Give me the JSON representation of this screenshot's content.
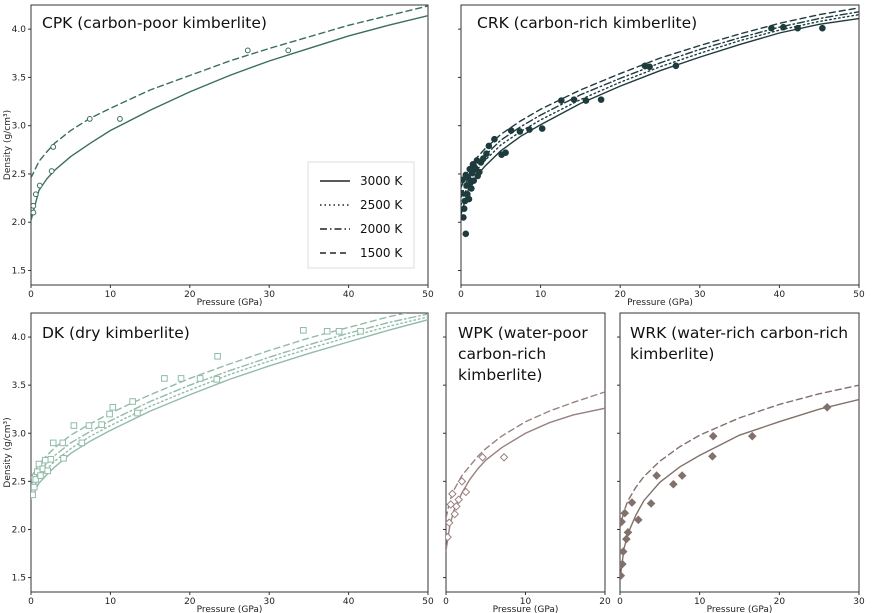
{
  "figure": {
    "y_axis_label": "Density (g/cm³)",
    "x_axis_label": "Pressure (GPa)"
  },
  "legend": {
    "items": [
      {
        "label": "3000 K",
        "dash": "solid"
      },
      {
        "label": "2500 K",
        "dash": "dotted"
      },
      {
        "label": "2000 K",
        "dash": "dashdot"
      },
      {
        "label": "1500 K",
        "dash": "dashed"
      }
    ]
  },
  "chart_data": [
    {
      "id": "cpk",
      "type": "line",
      "title": "CPK (carbon-poor kimberlite)",
      "color": "#3b6e5e",
      "marker": "circle",
      "marker_fill": "open",
      "xlabel": "Pressure (GPa)",
      "ylabel": "Density (g/cm³)",
      "xlim": [
        0,
        50
      ],
      "ylim": [
        1.35,
        4.25
      ],
      "xticks": [
        0,
        10,
        20,
        30,
        40,
        50
      ],
      "yticks": [
        1.5,
        2.0,
        2.5,
        3.0,
        3.5,
        4.0
      ],
      "show_y_tick_labels": true,
      "series": [
        {
          "temperature": "3000 K",
          "dash": "solid",
          "x": [
            0,
            1,
            2,
            3,
            5,
            7.5,
            10,
            15,
            20,
            25,
            30,
            35,
            40,
            45,
            50
          ],
          "y": [
            2.02,
            2.33,
            2.45,
            2.54,
            2.68,
            2.82,
            2.95,
            3.16,
            3.35,
            3.52,
            3.67,
            3.8,
            3.93,
            4.04,
            4.14
          ]
        },
        {
          "temperature": "1500 K",
          "dash": "dashed",
          "x": [
            0,
            1,
            2,
            3,
            5,
            7.5,
            10,
            15,
            20,
            25,
            30,
            35,
            40,
            45,
            50
          ],
          "y": [
            2.46,
            2.63,
            2.73,
            2.82,
            2.95,
            3.08,
            3.18,
            3.37,
            3.52,
            3.67,
            3.8,
            3.92,
            4.04,
            4.14,
            4.24
          ]
        }
      ],
      "points": [
        {
          "x": 0.3,
          "y": 2.1
        },
        {
          "x": 0.3,
          "y": 2.17
        },
        {
          "x": 0.6,
          "y": 2.29
        },
        {
          "x": 1.1,
          "y": 2.38
        },
        {
          "x": 2.6,
          "y": 2.53
        },
        {
          "x": 2.8,
          "y": 2.78
        },
        {
          "x": 7.4,
          "y": 3.07
        },
        {
          "x": 11.2,
          "y": 3.07
        },
        {
          "x": 27.3,
          "y": 3.78
        },
        {
          "x": 32.4,
          "y": 3.78
        }
      ]
    },
    {
      "id": "crk",
      "type": "line",
      "title": "CRK (carbon-rich kimberlite)",
      "color": "#1e3b3d",
      "marker": "circle",
      "marker_fill": "filled",
      "xlabel": "Pressure (GPa)",
      "ylabel": "",
      "xlim": [
        0,
        50
      ],
      "ylim": [
        1.35,
        4.25
      ],
      "xticks": [
        0,
        10,
        20,
        30,
        40,
        50
      ],
      "yticks": [
        1.5,
        2.0,
        2.5,
        3.0,
        3.5,
        4.0
      ],
      "show_y_tick_labels": false,
      "series": [
        {
          "temperature": "3000 K",
          "dash": "solid",
          "x": [
            0,
            1,
            2,
            3,
            5,
            7.5,
            10,
            15,
            20,
            25,
            30,
            35,
            40,
            45,
            50
          ],
          "y": [
            2.08,
            2.36,
            2.48,
            2.58,
            2.74,
            2.89,
            3.01,
            3.23,
            3.41,
            3.57,
            3.71,
            3.84,
            3.96,
            4.05,
            4.11
          ]
        },
        {
          "temperature": "2500 K",
          "dash": "dotted",
          "x": [
            0,
            1,
            2,
            3,
            5,
            7.5,
            10,
            15,
            20,
            25,
            30,
            35,
            40,
            45,
            50
          ],
          "y": [
            2.18,
            2.42,
            2.54,
            2.64,
            2.8,
            2.94,
            3.06,
            3.27,
            3.45,
            3.61,
            3.75,
            3.88,
            3.99,
            4.08,
            4.15
          ]
        },
        {
          "temperature": "2000 K",
          "dash": "dashdot",
          "x": [
            0,
            1,
            2,
            3,
            5,
            7.5,
            10,
            15,
            20,
            25,
            30,
            35,
            40,
            45,
            50
          ],
          "y": [
            2.26,
            2.49,
            2.6,
            2.69,
            2.85,
            2.99,
            3.11,
            3.32,
            3.49,
            3.65,
            3.79,
            3.91,
            4.02,
            4.11,
            4.18
          ]
        },
        {
          "temperature": "1500 K",
          "dash": "dashed",
          "x": [
            0,
            1,
            2,
            3,
            5,
            7.5,
            10,
            15,
            20,
            25,
            30,
            35,
            40,
            45,
            50
          ],
          "y": [
            2.36,
            2.56,
            2.67,
            2.76,
            2.91,
            3.05,
            3.17,
            3.37,
            3.54,
            3.7,
            3.83,
            3.95,
            4.06,
            4.15,
            4.22
          ]
        }
      ],
      "points": [
        {
          "x": 0.1,
          "y": 2.3
        },
        {
          "x": 0.2,
          "y": 2.44
        },
        {
          "x": 0.3,
          "y": 2.05
        },
        {
          "x": 0.4,
          "y": 2.14
        },
        {
          "x": 0.5,
          "y": 2.22
        },
        {
          "x": 0.6,
          "y": 1.88
        },
        {
          "x": 0.6,
          "y": 2.49
        },
        {
          "x": 0.7,
          "y": 2.38
        },
        {
          "x": 0.8,
          "y": 2.29
        },
        {
          "x": 0.9,
          "y": 2.46
        },
        {
          "x": 1.0,
          "y": 2.24
        },
        {
          "x": 1.1,
          "y": 2.55
        },
        {
          "x": 1.2,
          "y": 2.41
        },
        {
          "x": 1.3,
          "y": 2.35
        },
        {
          "x": 1.4,
          "y": 2.51
        },
        {
          "x": 1.5,
          "y": 2.6
        },
        {
          "x": 1.6,
          "y": 2.43
        },
        {
          "x": 1.8,
          "y": 2.56
        },
        {
          "x": 2.0,
          "y": 2.64
        },
        {
          "x": 2.1,
          "y": 2.48
        },
        {
          "x": 2.3,
          "y": 2.52
        },
        {
          "x": 2.5,
          "y": 2.62
        },
        {
          "x": 2.8,
          "y": 2.66
        },
        {
          "x": 3.2,
          "y": 2.71
        },
        {
          "x": 3.5,
          "y": 2.79
        },
        {
          "x": 4.2,
          "y": 2.86
        },
        {
          "x": 5.1,
          "y": 2.7
        },
        {
          "x": 5.6,
          "y": 2.72
        },
        {
          "x": 6.3,
          "y": 2.95
        },
        {
          "x": 7.4,
          "y": 2.94
        },
        {
          "x": 8.6,
          "y": 2.96
        },
        {
          "x": 10.2,
          "y": 2.97
        },
        {
          "x": 12.6,
          "y": 3.26
        },
        {
          "x": 14.2,
          "y": 3.27
        },
        {
          "x": 15.7,
          "y": 3.26
        },
        {
          "x": 17.6,
          "y": 3.27
        },
        {
          "x": 23.1,
          "y": 3.62
        },
        {
          "x": 23.7,
          "y": 3.61
        },
        {
          "x": 27.0,
          "y": 3.62
        },
        {
          "x": 39.0,
          "y": 4.01
        },
        {
          "x": 40.5,
          "y": 4.02
        },
        {
          "x": 42.3,
          "y": 4.01
        },
        {
          "x": 45.4,
          "y": 4.01
        }
      ]
    },
    {
      "id": "dk",
      "type": "line",
      "title": "DK (dry kimberlite)",
      "color": "#92bba9",
      "marker": "square",
      "marker_fill": "open",
      "xlabel": "Pressure (GPa)",
      "ylabel": "Density (g/cm³)",
      "xlim": [
        0,
        50
      ],
      "ylim": [
        1.35,
        4.25
      ],
      "xticks": [
        0,
        10,
        20,
        30,
        40,
        50
      ],
      "yticks": [
        1.5,
        2.0,
        2.5,
        3.0,
        3.5,
        4.0
      ],
      "show_y_tick_labels": true,
      "series": [
        {
          "temperature": "3000 K",
          "dash": "solid",
          "x": [
            0,
            1,
            2,
            3,
            5,
            7.5,
            10,
            15,
            20,
            25,
            30,
            35,
            40,
            45,
            50
          ],
          "y": [
            2.32,
            2.48,
            2.57,
            2.65,
            2.79,
            2.92,
            3.03,
            3.23,
            3.4,
            3.56,
            3.7,
            3.83,
            3.95,
            4.07,
            4.18
          ]
        },
        {
          "temperature": "2500 K",
          "dash": "dotted",
          "x": [
            0,
            1,
            2,
            3,
            5,
            7.5,
            10,
            15,
            20,
            25,
            30,
            35,
            40,
            45,
            50
          ],
          "y": [
            2.39,
            2.54,
            2.63,
            2.71,
            2.84,
            2.97,
            3.08,
            3.28,
            3.45,
            3.61,
            3.75,
            3.88,
            4.0,
            4.11,
            4.21
          ]
        },
        {
          "temperature": "2000 K",
          "dash": "dashdot",
          "x": [
            0,
            1,
            2,
            3,
            5,
            7.5,
            10,
            15,
            20,
            25,
            30,
            35,
            40,
            45,
            50
          ],
          "y": [
            2.46,
            2.6,
            2.69,
            2.77,
            2.9,
            3.02,
            3.13,
            3.33,
            3.5,
            3.65,
            3.79,
            3.92,
            4.04,
            4.15,
            4.24
          ]
        },
        {
          "temperature": "1500 K",
          "dash": "dashed",
          "x": [
            0,
            1,
            2,
            3,
            5,
            7.5,
            10,
            15,
            20,
            25,
            30,
            35,
            40,
            45,
            50
          ],
          "y": [
            2.54,
            2.68,
            2.77,
            2.85,
            2.98,
            3.1,
            3.21,
            3.4,
            3.57,
            3.72,
            3.86,
            3.99,
            4.1,
            4.21,
            4.3
          ]
        }
      ],
      "points": [
        {
          "x": 0.2,
          "y": 2.36
        },
        {
          "x": 0.4,
          "y": 2.44
        },
        {
          "x": 0.6,
          "y": 2.52
        },
        {
          "x": 0.8,
          "y": 2.6
        },
        {
          "x": 1.0,
          "y": 2.68
        },
        {
          "x": 1.2,
          "y": 2.56
        },
        {
          "x": 1.5,
          "y": 2.63
        },
        {
          "x": 1.8,
          "y": 2.72
        },
        {
          "x": 2.1,
          "y": 2.61
        },
        {
          "x": 2.5,
          "y": 2.73
        },
        {
          "x": 2.8,
          "y": 2.9
        },
        {
          "x": 4.0,
          "y": 2.9
        },
        {
          "x": 4.1,
          "y": 2.74
        },
        {
          "x": 5.4,
          "y": 3.08
        },
        {
          "x": 6.4,
          "y": 2.9
        },
        {
          "x": 7.3,
          "y": 3.08
        },
        {
          "x": 8.9,
          "y": 3.09
        },
        {
          "x": 9.9,
          "y": 3.2
        },
        {
          "x": 10.3,
          "y": 3.27
        },
        {
          "x": 12.8,
          "y": 3.33
        },
        {
          "x": 13.4,
          "y": 3.21
        },
        {
          "x": 16.8,
          "y": 3.57
        },
        {
          "x": 18.9,
          "y": 3.57
        },
        {
          "x": 21.3,
          "y": 3.57
        },
        {
          "x": 23.5,
          "y": 3.8
        },
        {
          "x": 23.4,
          "y": 3.56
        },
        {
          "x": 34.3,
          "y": 4.07
        },
        {
          "x": 37.3,
          "y": 4.06
        },
        {
          "x": 38.8,
          "y": 4.06
        },
        {
          "x": 41.5,
          "y": 4.06
        }
      ]
    },
    {
      "id": "wpk",
      "type": "line",
      "title": "WPK (water-poor carbon-rich kimberlite)",
      "title_lines": [
        "WPK (water-poor",
        "carbon-rich",
        "kimberlite)"
      ],
      "color": "#9a8181",
      "marker": "diamond",
      "marker_fill": "open",
      "xlabel": "Pressure (GPa)",
      "ylabel": "",
      "xlim": [
        0,
        20
      ],
      "ylim": [
        1.35,
        4.25
      ],
      "xticks": [
        0,
        10,
        20
      ],
      "yticks": [
        1.5,
        2.0,
        2.5,
        3.0,
        3.5,
        4.0
      ],
      "show_y_tick_labels": false,
      "series": [
        {
          "temperature": "3000 K",
          "dash": "solid",
          "x": [
            0,
            0.5,
            1,
            2,
            3,
            4,
            5,
            7,
            10,
            13,
            16,
            20
          ],
          "y": [
            1.78,
            2.05,
            2.2,
            2.38,
            2.52,
            2.63,
            2.72,
            2.85,
            3.0,
            3.11,
            3.19,
            3.26
          ]
        },
        {
          "temperature": "1500 K",
          "dash": "dashed",
          "x": [
            0,
            0.5,
            1,
            2,
            3,
            4,
            5,
            7,
            10,
            13,
            16,
            20
          ],
          "y": [
            2.12,
            2.3,
            2.41,
            2.56,
            2.66,
            2.76,
            2.84,
            2.97,
            3.12,
            3.23,
            3.32,
            3.43
          ]
        }
      ],
      "points": [
        {
          "x": 0.2,
          "y": 1.92
        },
        {
          "x": 0.4,
          "y": 2.07
        },
        {
          "x": 0.6,
          "y": 2.26
        },
        {
          "x": 0.8,
          "y": 2.37
        },
        {
          "x": 1.1,
          "y": 2.16
        },
        {
          "x": 1.3,
          "y": 2.24
        },
        {
          "x": 1.6,
          "y": 2.31
        },
        {
          "x": 2.0,
          "y": 2.5
        },
        {
          "x": 2.5,
          "y": 2.39
        },
        {
          "x": 4.6,
          "y": 2.75
        },
        {
          "x": 7.3,
          "y": 2.75
        }
      ]
    },
    {
      "id": "wrk",
      "type": "line",
      "title": "WRK (water-rich carbon-rich kimberlite)",
      "title_lines": [
        "WRK (water-rich carbon-rich",
        "kimberlite)"
      ],
      "color": "#82706b",
      "marker": "diamond",
      "marker_fill": "filled",
      "xlabel": "Pressure (GPa)",
      "ylabel": "",
      "xlim": [
        0,
        30
      ],
      "ylim": [
        1.35,
        4.25
      ],
      "xticks": [
        0,
        10,
        20,
        30
      ],
      "yticks": [
        1.5,
        2.0,
        2.5,
        3.0,
        3.5,
        4.0
      ],
      "show_y_tick_labels": false,
      "series": [
        {
          "temperature": "3000 K",
          "dash": "solid",
          "x": [
            0,
            0.5,
            1,
            2,
            3,
            5,
            7.5,
            10,
            15,
            20,
            25,
            30
          ],
          "y": [
            1.48,
            1.8,
            1.96,
            2.15,
            2.3,
            2.49,
            2.65,
            2.77,
            2.98,
            3.12,
            3.25,
            3.35
          ]
        },
        {
          "temperature": "1500 K",
          "dash": "dashed",
          "x": [
            0,
            0.5,
            1,
            2,
            3,
            5,
            7.5,
            10,
            15,
            20,
            25,
            30
          ],
          "y": [
            2.02,
            2.19,
            2.3,
            2.44,
            2.55,
            2.71,
            2.86,
            2.98,
            3.16,
            3.3,
            3.41,
            3.5
          ]
        }
      ],
      "points": [
        {
          "x": 0.1,
          "y": 1.52
        },
        {
          "x": 0.2,
          "y": 2.08
        },
        {
          "x": 0.3,
          "y": 1.64
        },
        {
          "x": 0.4,
          "y": 1.77
        },
        {
          "x": 0.6,
          "y": 2.17
        },
        {
          "x": 0.8,
          "y": 1.9
        },
        {
          "x": 1.0,
          "y": 1.97
        },
        {
          "x": 1.5,
          "y": 2.28
        },
        {
          "x": 2.3,
          "y": 2.1
        },
        {
          "x": 3.9,
          "y": 2.27
        },
        {
          "x": 4.6,
          "y": 2.56
        },
        {
          "x": 6.7,
          "y": 2.47
        },
        {
          "x": 7.8,
          "y": 2.56
        },
        {
          "x": 11.6,
          "y": 2.76
        },
        {
          "x": 11.7,
          "y": 2.97
        },
        {
          "x": 16.6,
          "y": 2.97
        },
        {
          "x": 26.0,
          "y": 3.27
        }
      ]
    }
  ]
}
